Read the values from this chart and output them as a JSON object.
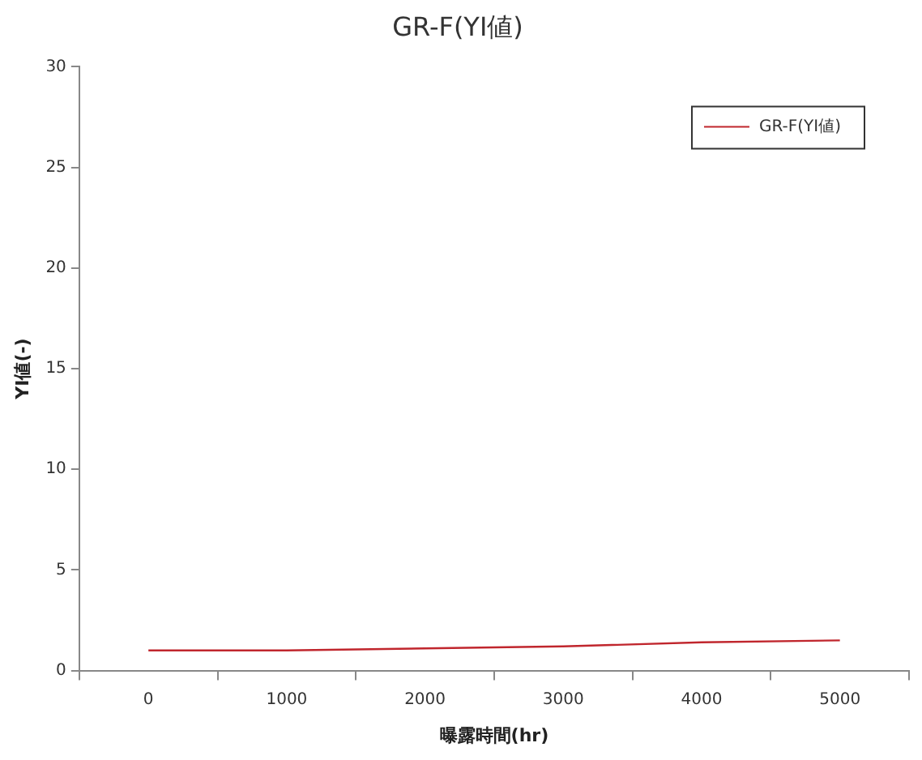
{
  "chart_data": {
    "type": "line",
    "title": "GR-F(YI値)",
    "xlabel": "曝露時間(hr)",
    "ylabel": "YI値(-)",
    "categories": [
      "0",
      "1000",
      "2000",
      "3000",
      "4000",
      "5000"
    ],
    "series": [
      {
        "name": "GR-F(YI値)",
        "color": "#c0262d",
        "values": [
          1.0,
          1.0,
          1.1,
          1.2,
          1.4,
          1.5
        ]
      }
    ],
    "ylim": [
      0,
      30
    ],
    "yticks": [
      0,
      5,
      10,
      15,
      20,
      25,
      30
    ],
    "grid": false,
    "legend": "top right",
    "marker": "none",
    "line_style": "solid"
  }
}
